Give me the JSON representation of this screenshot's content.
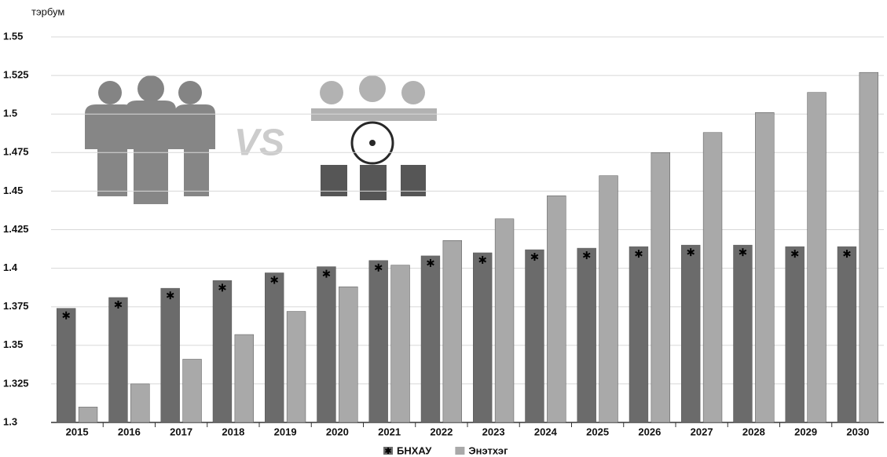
{
  "chart_data": {
    "type": "bar",
    "y_label": "тэрбум",
    "annotation": "VS",
    "categories": [
      "2015",
      "2016",
      "2017",
      "2018",
      "2019",
      "2020",
      "2021",
      "2022",
      "2023",
      "2024",
      "2025",
      "2026",
      "2027",
      "2028",
      "2029",
      "2030"
    ],
    "series": [
      {
        "name": "БНХАУ",
        "color": "#6b6b6b",
        "values": [
          1.374,
          1.381,
          1.387,
          1.392,
          1.397,
          1.401,
          1.405,
          1.408,
          1.41,
          1.412,
          1.413,
          1.414,
          1.415,
          1.415,
          1.414,
          1.414
        ]
      },
      {
        "name": "Энэтхэг",
        "color": "#a9a9a9",
        "values": [
          1.31,
          1.325,
          1.341,
          1.357,
          1.372,
          1.388,
          1.402,
          1.418,
          1.432,
          1.447,
          1.46,
          1.475,
          1.488,
          1.501,
          1.514,
          1.527
        ]
      }
    ],
    "ylim": [
      1.3,
      1.55
    ],
    "yticks": [
      1.3,
      1.325,
      1.35,
      1.375,
      1.4,
      1.425,
      1.45,
      1.475,
      1.5,
      1.525,
      1.55
    ],
    "grid": true
  }
}
